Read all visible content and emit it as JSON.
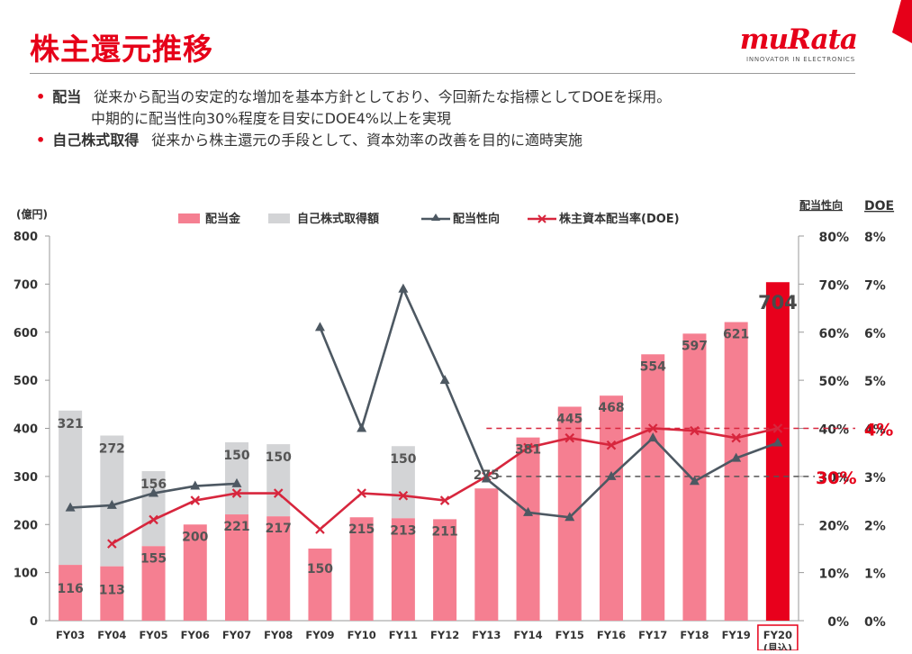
{
  "page": {
    "title": "株主還元推移",
    "logo": {
      "wordmark": "muRata",
      "tagline": "INNOVATOR IN ELECTRONICS"
    },
    "bullets": [
      {
        "label": "配当",
        "lines": [
          "従来から配当の安定的な増加を基本方針としており、今回新たな指標としてDOEを採用。",
          "中期的に配当性向30%程度を目安にDOE4%以上を実現"
        ]
      },
      {
        "label": "自己株式取得",
        "lines": [
          "従来から株主還元の手段として、資本効率の改善を目的に適時実施"
        ]
      }
    ],
    "colors": {
      "accent": "#e60019",
      "dividend_bar": "#f57f91",
      "buyback_bar": "#d3d4d6",
      "highlight_bar": "#e8001c",
      "payout_line": "#4d5862",
      "doe_line": "#d7263d"
    }
  },
  "chart_data": {
    "type": "bar",
    "categories": [
      "FY03",
      "FY04",
      "FY05",
      "FY06",
      "FY07",
      "FY08",
      "FY09",
      "FY10",
      "FY11",
      "FY12",
      "FY13",
      "FY14",
      "FY15",
      "FY16",
      "FY17",
      "FY18",
      "FY19",
      "FY20"
    ],
    "last_category_sub": "(見込)",
    "ylabel": "(億円)",
    "ylim": [
      0,
      800
    ],
    "yticks": [
      "0",
      "100",
      "200",
      "300",
      "400",
      "500",
      "600",
      "700",
      "800"
    ],
    "y2_label": "配当性向",
    "y2_ticks": [
      "0%",
      "10%",
      "20%",
      "30%",
      "40%",
      "50%",
      "60%",
      "70%",
      "80%"
    ],
    "y3_label": "DOE",
    "y3_ticks": [
      "0%",
      "1%",
      "2%",
      "3%",
      "4%",
      "5%",
      "6%",
      "7%",
      "8%"
    ],
    "series": [
      {
        "name": "配当金",
        "kind": "bar",
        "values": [
          116,
          113,
          155,
          200,
          221,
          217,
          150,
          215,
          213,
          211,
          275,
          381,
          445,
          468,
          554,
          597,
          621,
          704
        ]
      },
      {
        "name": "自己株式取得額",
        "kind": "bar-stack",
        "values": [
          321,
          272,
          156,
          null,
          150,
          150,
          null,
          null,
          150,
          null,
          null,
          null,
          null,
          null,
          null,
          null,
          null,
          null
        ]
      },
      {
        "name": "配当性向",
        "kind": "line",
        "axis": "配当性向",
        "values": [
          23.5,
          24,
          26.5,
          28,
          28.5,
          null,
          61,
          40,
          69,
          50,
          29.5,
          22.5,
          21.5,
          30,
          38,
          29,
          33.8,
          37
        ]
      },
      {
        "name": "株主資本配当率(DOE)",
        "kind": "line",
        "axis": "DOE",
        "values": [
          null,
          1.6,
          2.1,
          2.5,
          2.65,
          2.65,
          1.9,
          2.65,
          2.6,
          2.5,
          3.0,
          3.6,
          3.8,
          3.65,
          4.0,
          3.95,
          3.8,
          4.0
        ]
      }
    ],
    "reference_lines": [
      {
        "label": "4%",
        "axis": "DOE",
        "value": 4
      },
      {
        "label": "30%",
        "axis": "配当性向",
        "value": 30
      }
    ],
    "legend_position": "top"
  }
}
